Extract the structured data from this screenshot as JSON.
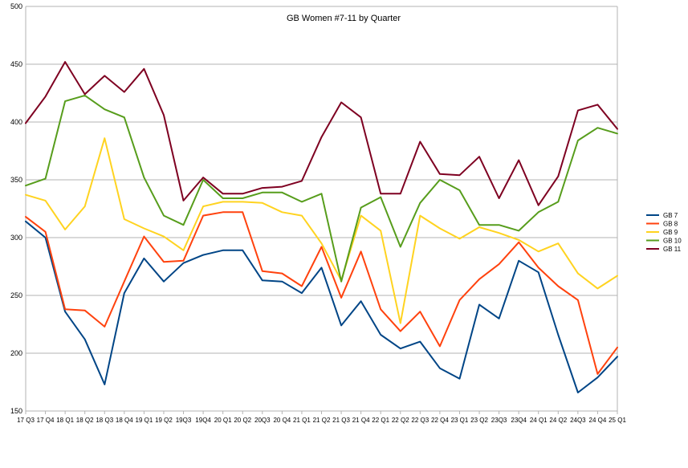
{
  "chart_data": {
    "type": "line",
    "title": "GB Women #7-11 by Quarter",
    "xlabel": "",
    "ylabel": "",
    "ylim": [
      150,
      500
    ],
    "yticks": [
      150,
      200,
      250,
      300,
      350,
      400,
      450,
      500
    ],
    "grid": true,
    "legend": "right",
    "categories": [
      "17 Q3",
      "17 Q4",
      "18 Q1",
      "18 Q2",
      "18 Q3",
      "18 Q4",
      "19 Q1",
      "19 Q2",
      "19Q3",
      "19Q4",
      "20 Q1",
      "20 Q2",
      "20Q3",
      "20 Q4",
      "21 Q1",
      "21 Q2",
      "21 Q3",
      "21 Q4",
      "22 Q1",
      "22 Q2",
      "22 Q3",
      "22 Q4",
      "23 Q1",
      "23 Q2",
      "23Q3",
      "23Q4",
      "24 Q1",
      "24 Q2",
      "24Q3",
      "24 Q4",
      "25 Q1"
    ],
    "series": [
      {
        "name": "GB 7",
        "color": "#004586",
        "values": [
          314,
          300,
          236,
          212,
          173,
          252,
          282,
          262,
          278,
          285,
          289,
          289,
          263,
          262,
          252,
          274,
          224,
          245,
          216,
          204,
          210,
          187,
          178,
          242,
          230,
          280,
          270,
          216,
          166,
          179,
          197
        ]
      },
      {
        "name": "GB 8",
        "color": "#ff420e",
        "values": [
          318,
          305,
          238,
          237,
          223,
          262,
          301,
          279,
          280,
          319,
          322,
          322,
          271,
          269,
          258,
          292,
          248,
          288,
          238,
          219,
          236,
          206,
          246,
          264,
          277,
          296,
          274,
          258,
          246,
          182,
          205
        ]
      },
      {
        "name": "GB 9",
        "color": "#ffd320",
        "values": [
          337,
          332,
          307,
          327,
          386,
          316,
          308,
          301,
          289,
          327,
          331,
          331,
          330,
          322,
          319,
          295,
          263,
          319,
          306,
          226,
          319,
          308,
          299,
          309,
          304,
          298,
          288,
          295,
          269,
          256,
          267
        ]
      },
      {
        "name": "GB 10",
        "color": "#579d1c",
        "values": [
          345,
          351,
          418,
          423,
          411,
          404,
          352,
          319,
          311,
          350,
          334,
          334,
          339,
          339,
          331,
          338,
          262,
          326,
          335,
          292,
          330,
          350,
          341,
          311,
          311,
          306,
          322,
          331,
          384,
          395,
          390
        ]
      },
      {
        "name": "GB 11",
        "color": "#7e0021",
        "values": [
          399,
          422,
          452,
          424,
          440,
          426,
          446,
          406,
          332,
          352,
          338,
          338,
          343,
          344,
          349,
          387,
          417,
          404,
          338,
          338,
          383,
          355,
          354,
          370,
          334,
          367,
          328,
          353,
          410,
          415,
          394
        ]
      }
    ]
  }
}
